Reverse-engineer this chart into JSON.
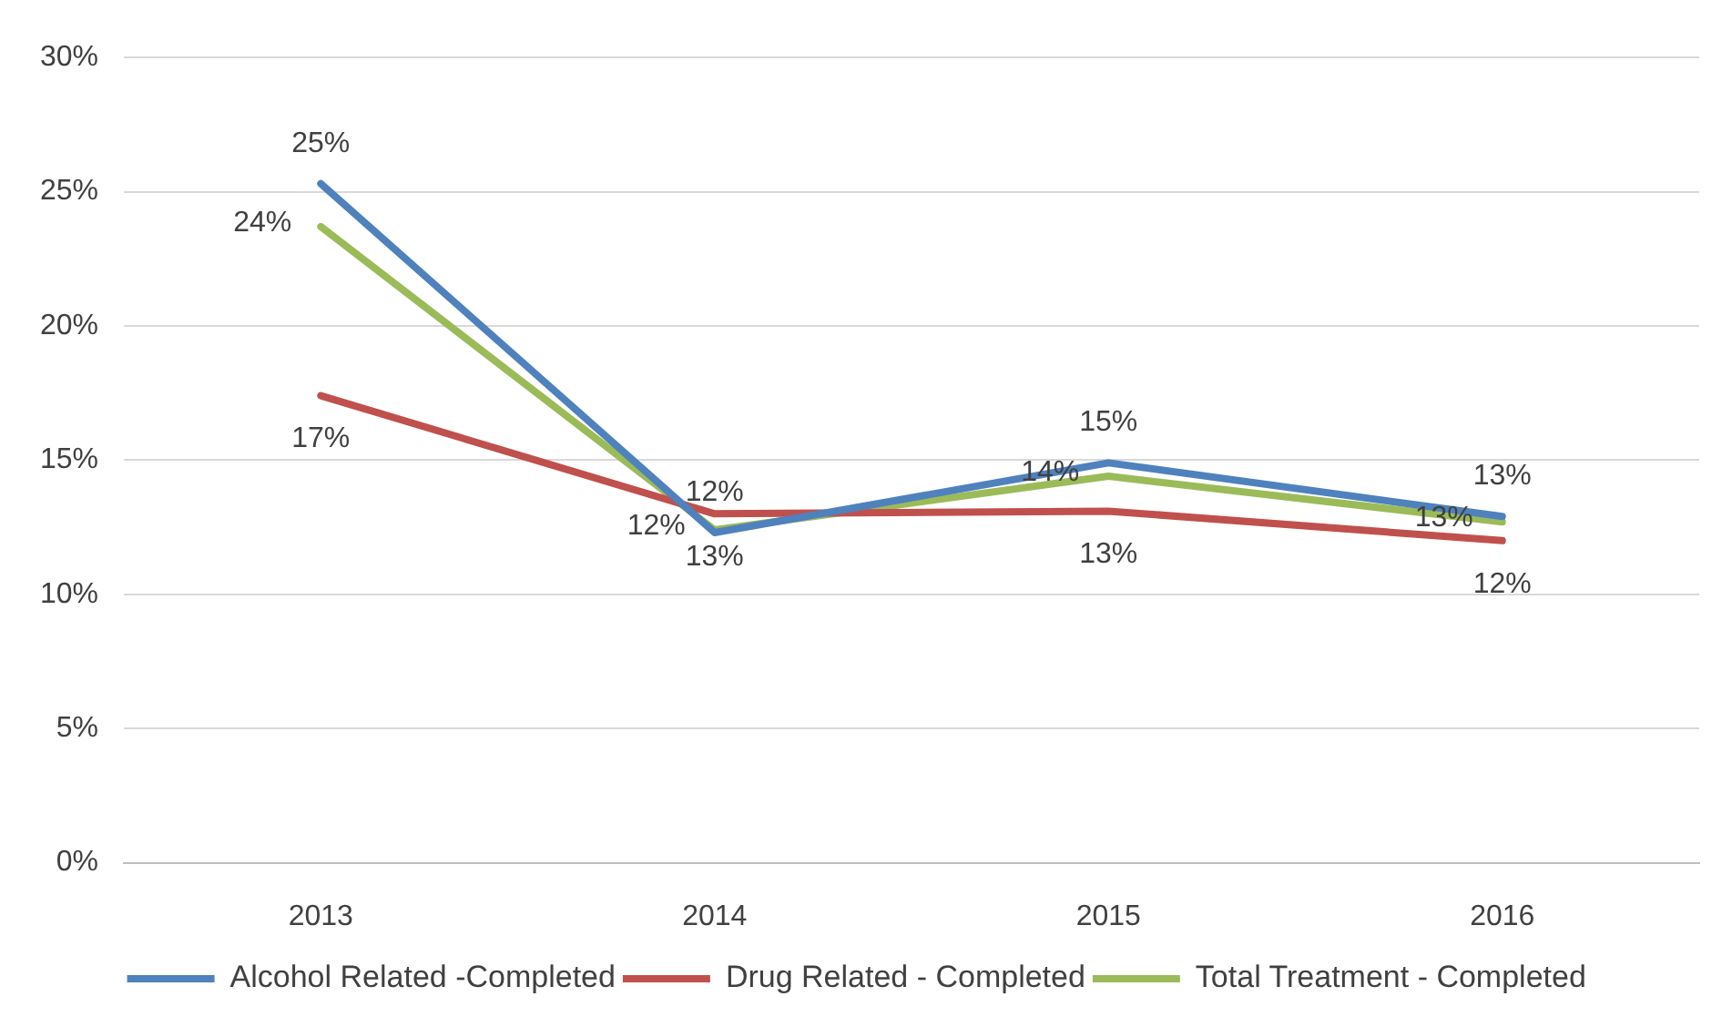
{
  "chart_data": {
    "type": "line",
    "categories": [
      "2013",
      "2014",
      "2015",
      "2016"
    ],
    "series": [
      {
        "name": "Alcohol Related -Completed",
        "color": "#4f81bd",
        "values": [
          25.3,
          12.3,
          14.9,
          12.9
        ],
        "value_labels": [
          "25%",
          "12%",
          "15%",
          "13%"
        ]
      },
      {
        "name": "Drug Related - Completed",
        "color": "#c0504d",
        "values": [
          17.4,
          13.0,
          13.1,
          12.0
        ],
        "value_labels": [
          "17%",
          "13%",
          "13%",
          "12%"
        ]
      },
      {
        "name": "Total Treatment - Completed",
        "color": "#9bbb59",
        "values": [
          23.7,
          12.4,
          14.4,
          12.7
        ],
        "value_labels": [
          "24%",
          "12%",
          "14%",
          "13%"
        ]
      }
    ],
    "ylim": [
      0,
      30
    ],
    "yticks": [
      {
        "value": 0,
        "label": "0%"
      },
      {
        "value": 5,
        "label": "5%"
      },
      {
        "value": 10,
        "label": "10%"
      },
      {
        "value": 15,
        "label": "15%"
      },
      {
        "value": 20,
        "label": "20%"
      },
      {
        "value": 25,
        "label": "25%"
      },
      {
        "value": 30,
        "label": "30%"
      }
    ],
    "grid": "y",
    "legend": "bottom",
    "marker": "none",
    "line_style": "solid"
  }
}
